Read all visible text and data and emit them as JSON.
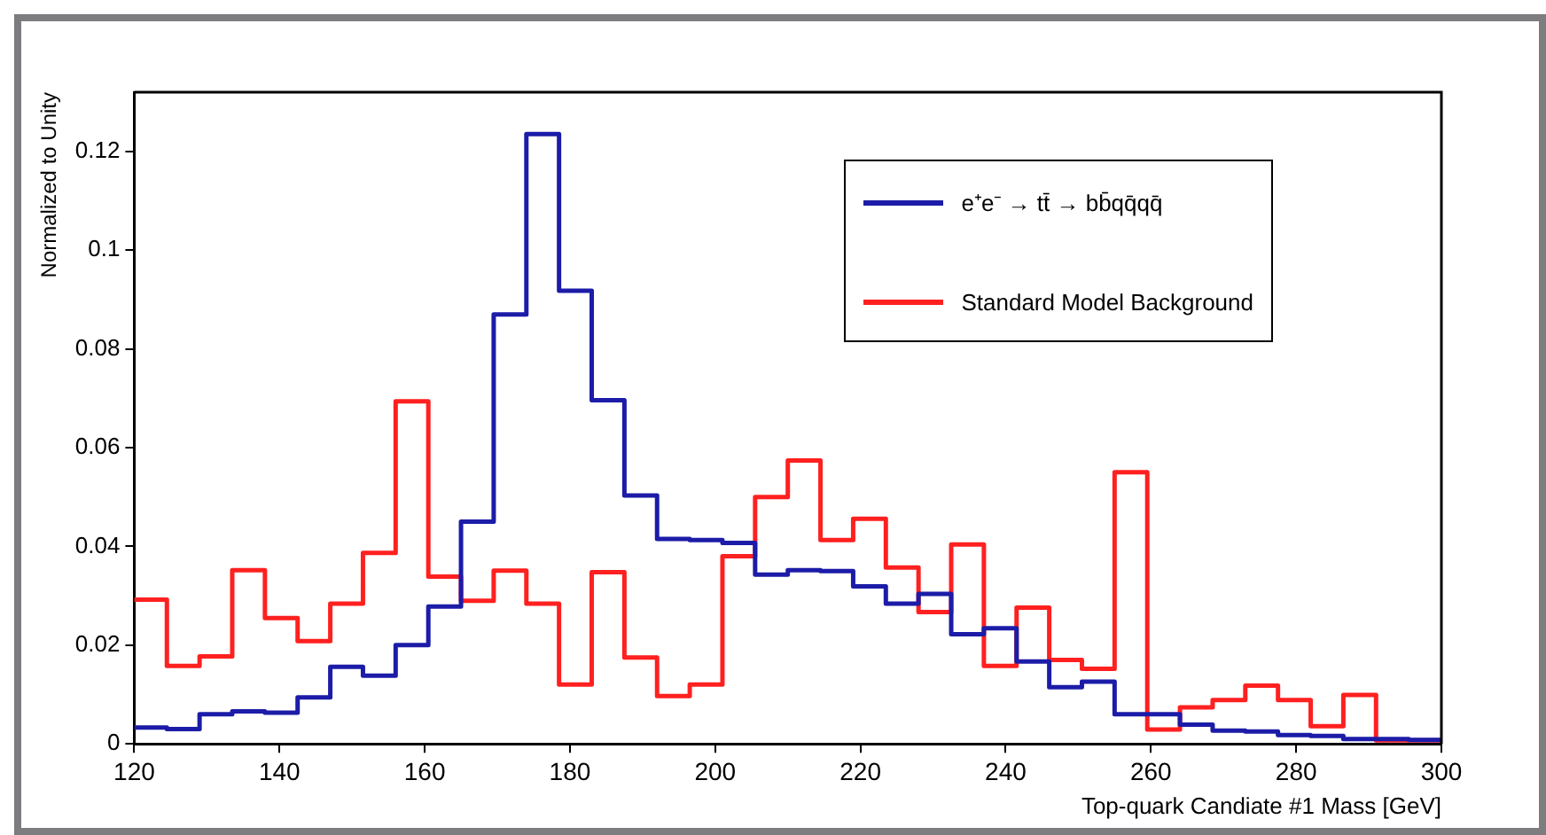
{
  "chart_data": {
    "type": "histogram",
    "xlabel": "Top-quark Candiate #1 Mass [GeV]",
    "ylabel": "Normalized to Unity",
    "bins": [
      120,
      124.5,
      129,
      133.5,
      138,
      142.5,
      147,
      151.5,
      156,
      160.5,
      165,
      169.5,
      174,
      178.5,
      183,
      187.5,
      192,
      196.5,
      201,
      205.5,
      210,
      214.5,
      219,
      223.5,
      228,
      232.5,
      237,
      241.5,
      246,
      250.5,
      255,
      259.5,
      264,
      268.5,
      273,
      277.5,
      282,
      286.5,
      291,
      295.5,
      300
    ],
    "series": [
      {
        "name": "e⁺e⁻ → tt̄ → bb̄qq̄qq̄",
        "color": "#1c1ca8",
        "values": [
          0.0033,
          0.003,
          0.006,
          0.0066,
          0.0063,
          0.0094,
          0.0156,
          0.0138,
          0.02,
          0.0278,
          0.045,
          0.087,
          0.1235,
          0.0918,
          0.0696,
          0.0503,
          0.0415,
          0.0413,
          0.0407,
          0.0343,
          0.0352,
          0.035,
          0.0319,
          0.0284,
          0.0304,
          0.0222,
          0.0234,
          0.0167,
          0.0115,
          0.0126,
          0.006,
          0.006,
          0.0039,
          0.0027,
          0.0025,
          0.0018,
          0.0016,
          0.001,
          0.001,
          0.0008
        ]
      },
      {
        "name": "Standard Model Background",
        "color": "#ff2020",
        "values": [
          0.0292,
          0.0158,
          0.0177,
          0.0352,
          0.0255,
          0.0208,
          0.0284,
          0.0387,
          0.0694,
          0.0339,
          0.029,
          0.0351,
          0.0284,
          0.012,
          0.0348,
          0.0175,
          0.0097,
          0.012,
          0.038,
          0.05,
          0.0574,
          0.0413,
          0.0456,
          0.0357,
          0.0267,
          0.0404,
          0.0158,
          0.0276,
          0.017,
          0.0152,
          0.055,
          0.0029,
          0.0074,
          0.0089,
          0.0118,
          0.0089,
          0.0036,
          0.0099,
          0.0007,
          0.0007
        ]
      }
    ],
    "xlim": [
      120,
      300
    ],
    "xticks": [
      120,
      140,
      160,
      180,
      200,
      220,
      240,
      260,
      280,
      300
    ],
    "ylim": [
      0,
      0.132
    ],
    "yticks": [
      0,
      0.02,
      0.04,
      0.06,
      0.08,
      0.1,
      0.12
    ],
    "grid": false,
    "legend": "top right"
  }
}
